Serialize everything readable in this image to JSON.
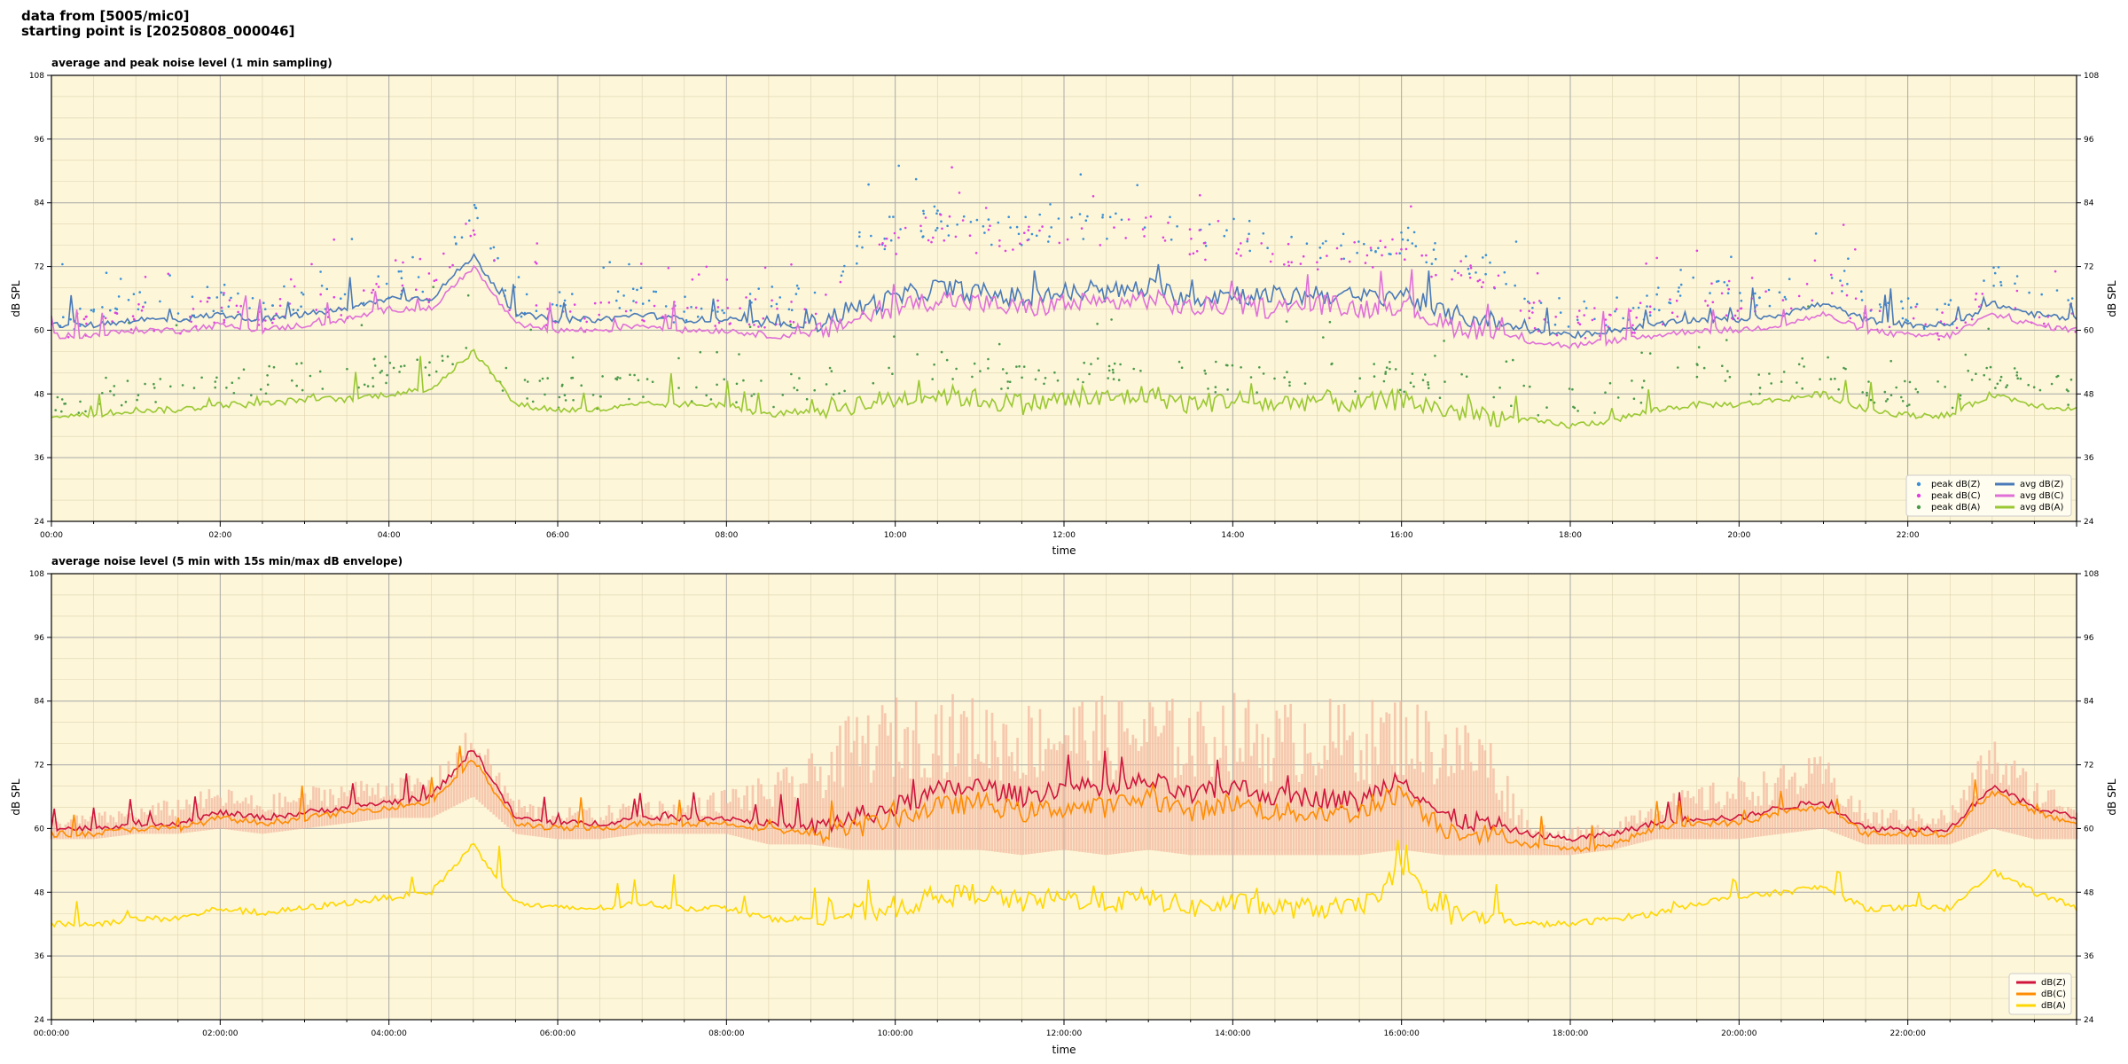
{
  "header": {
    "line1": "data from [5005/mic0]",
    "line2": "starting point is [20250808_000046]"
  },
  "colors": {
    "plot_bg": "#fdf6d8",
    "grid_major": "#aaaaaa",
    "grid_minor": "#ddd3b0",
    "peak_z": "#3a8fd6",
    "peak_c": "#e040e0",
    "peak_a": "#4a9a4a",
    "avg_z": "#4a7ab8",
    "avg_c": "#e070d8",
    "avg_a": "#9ac832",
    "line_z": "#d0143c",
    "line_c": "#ff8c00",
    "line_a": "#ffd700",
    "envelope": "#f3b8a0"
  },
  "chart_data": [
    {
      "type": "line",
      "title": "average and peak noise level (1 min sampling)",
      "xlabel": "time",
      "ylabel": "dB SPL",
      "ylim": [
        24,
        108
      ],
      "yticks": [
        24,
        36,
        48,
        60,
        72,
        84,
        96,
        108
      ],
      "xticks": [
        "00:00",
        "02:00",
        "04:00",
        "06:00",
        "08:00",
        "10:00",
        "12:00",
        "14:00",
        "16:00",
        "18:00",
        "20:00",
        "22:00"
      ],
      "x_hours": [
        0,
        0.5,
        1,
        1.5,
        2,
        2.5,
        3,
        3.5,
        4,
        4.5,
        5,
        5.5,
        6,
        6.5,
        7,
        7.5,
        8,
        8.5,
        9,
        9.5,
        10,
        10.5,
        11,
        11.5,
        12,
        12.5,
        13,
        13.5,
        14,
        14.5,
        15,
        15.5,
        16,
        16.5,
        17,
        17.5,
        18,
        18.5,
        19,
        19.5,
        20,
        20.5,
        21,
        21.5,
        22,
        22.5,
        23,
        23.5,
        24
      ],
      "grid": true,
      "legend": "bottom-right",
      "series": [
        {
          "name": "peak dB(Z)",
          "kind": "points",
          "values": [
            62,
            62,
            63,
            63,
            65,
            64,
            65,
            66,
            67,
            69,
            80,
            64,
            63,
            63,
            64,
            63,
            65,
            64,
            65,
            74,
            78,
            80,
            78,
            77,
            79,
            78,
            80,
            77,
            77,
            76,
            75,
            75,
            76,
            73,
            71,
            64,
            62,
            62,
            64,
            68,
            65,
            66,
            70,
            63,
            62,
            62,
            68,
            65,
            63
          ]
        },
        {
          "name": "peak dB(C)",
          "kind": "points",
          "values": [
            60,
            60,
            61,
            61,
            63,
            62,
            63,
            64,
            65,
            67,
            78,
            62,
            61,
            61,
            62,
            61,
            63,
            62,
            63,
            72,
            76,
            78,
            76,
            75,
            77,
            76,
            78,
            75,
            75,
            74,
            73,
            73,
            74,
            71,
            69,
            62,
            60,
            60,
            62,
            66,
            63,
            64,
            68,
            61,
            60,
            60,
            66,
            63,
            61
          ]
        },
        {
          "name": "peak dB(A)",
          "kind": "points",
          "values": [
            45,
            46,
            47,
            47,
            48,
            49,
            50,
            50,
            51,
            53,
            55,
            48,
            47,
            47,
            48,
            48,
            48,
            47,
            48,
            50,
            51,
            52,
            51,
            50,
            51,
            51,
            52,
            50,
            50,
            50,
            51,
            50,
            50,
            48,
            47,
            46,
            45,
            46,
            48,
            50,
            49,
            50,
            51,
            48,
            47,
            47,
            50,
            49,
            47
          ]
        },
        {
          "name": "avg dB(Z)",
          "kind": "line",
          "values": [
            61,
            61,
            62,
            62,
            63,
            62,
            63,
            64,
            66,
            66,
            74,
            63,
            62,
            62,
            63,
            62,
            62,
            61,
            61,
            64,
            66,
            68,
            67,
            66,
            67,
            67,
            68,
            66,
            67,
            66,
            67,
            66,
            67,
            63,
            62,
            60,
            59,
            60,
            61,
            62,
            62,
            63,
            65,
            62,
            61,
            61,
            65,
            63,
            62
          ]
        },
        {
          "name": "avg dB(C)",
          "kind": "line",
          "values": [
            59,
            59,
            60,
            60,
            61,
            60,
            61,
            62,
            64,
            64,
            72,
            61,
            60,
            60,
            61,
            60,
            60,
            59,
            59,
            62,
            64,
            66,
            65,
            64,
            65,
            65,
            66,
            64,
            65,
            64,
            65,
            64,
            65,
            61,
            60,
            58,
            57,
            58,
            59,
            60,
            60,
            61,
            63,
            60,
            59,
            59,
            63,
            61,
            60
          ]
        },
        {
          "name": "avg dB(A)",
          "kind": "line",
          "values": [
            44,
            44,
            45,
            45,
            46,
            46,
            47,
            47,
            48,
            49,
            56,
            46,
            45,
            45,
            46,
            46,
            46,
            44,
            45,
            46,
            47,
            48,
            47,
            46,
            47,
            47,
            48,
            46,
            47,
            46,
            47,
            46,
            47,
            45,
            44,
            43,
            42,
            43,
            45,
            46,
            46,
            47,
            48,
            45,
            44,
            44,
            48,
            46,
            45
          ]
        }
      ]
    },
    {
      "type": "line",
      "title": "average noise level (5 min with 15s min/max dB envelope)",
      "xlabel": "time",
      "ylabel": "dB SPL",
      "ylim": [
        24,
        108
      ],
      "yticks": [
        24,
        36,
        48,
        60,
        72,
        84,
        96,
        108
      ],
      "xticks": [
        "00:00:00",
        "02:00:00",
        "04:00:00",
        "06:00:00",
        "08:00:00",
        "10:00:00",
        "12:00:00",
        "14:00:00",
        "16:00:00",
        "18:00:00",
        "20:00:00",
        "22:00:00"
      ],
      "x_hours": [
        0,
        0.5,
        1,
        1.5,
        2,
        2.5,
        3,
        3.5,
        4,
        4.5,
        5,
        5.5,
        6,
        6.5,
        7,
        7.5,
        8,
        8.5,
        9,
        9.5,
        10,
        10.5,
        11,
        11.5,
        12,
        12.5,
        13,
        13.5,
        14,
        14.5,
        15,
        15.5,
        16,
        16.5,
        17,
        17.5,
        18,
        18.5,
        19,
        19.5,
        20,
        20.5,
        21,
        21.5,
        22,
        22.5,
        23,
        23.5,
        24
      ],
      "grid": true,
      "legend": "bottom-right",
      "series": [
        {
          "name": "dB(Z)",
          "kind": "line",
          "values": [
            60,
            60,
            61,
            61,
            63,
            62,
            63,
            64,
            65,
            66,
            75,
            62,
            61,
            61,
            62,
            62,
            62,
            61,
            60,
            62,
            64,
            67,
            68,
            66,
            68,
            67,
            69,
            66,
            68,
            66,
            66,
            65,
            70,
            62,
            61,
            59,
            58,
            59,
            61,
            62,
            62,
            64,
            65,
            60,
            60,
            60,
            68,
            64,
            62
          ]
        },
        {
          "name": "dB(C)",
          "kind": "line",
          "values": [
            59,
            59,
            60,
            60,
            62,
            61,
            62,
            63,
            64,
            65,
            73,
            61,
            60,
            60,
            61,
            61,
            61,
            60,
            59,
            60,
            62,
            64,
            65,
            63,
            64,
            64,
            66,
            63,
            65,
            63,
            63,
            63,
            67,
            60,
            59,
            57,
            56,
            57,
            60,
            61,
            61,
            63,
            64,
            59,
            59,
            59,
            67,
            63,
            61
          ]
        },
        {
          "name": "dB(A)",
          "kind": "line",
          "values": [
            42,
            42,
            43,
            43,
            45,
            44,
            45,
            46,
            47,
            48,
            57,
            46,
            45,
            45,
            46,
            45,
            45,
            43,
            43,
            44,
            45,
            47,
            48,
            46,
            47,
            46,
            47,
            45,
            46,
            45,
            45,
            45,
            52,
            44,
            43,
            42,
            42,
            43,
            44,
            46,
            47,
            48,
            49,
            45,
            45,
            45,
            52,
            48,
            45
          ]
        },
        {
          "name": "max envelope",
          "kind": "area_upper",
          "values": [
            62,
            63,
            64,
            66,
            68,
            66,
            68,
            69,
            70,
            70,
            80,
            66,
            64,
            64,
            66,
            65,
            68,
            70,
            74,
            82,
            85,
            86,
            85,
            84,
            86,
            85,
            86,
            84,
            86,
            84,
            85,
            84,
            86,
            82,
            80,
            62,
            60,
            62,
            66,
            68,
            70,
            72,
            74,
            64,
            64,
            64,
            78,
            70,
            66
          ]
        },
        {
          "name": "min envelope",
          "kind": "area_lower",
          "values": [
            58,
            58,
            59,
            59,
            60,
            59,
            60,
            61,
            62,
            62,
            66,
            59,
            58,
            58,
            59,
            59,
            59,
            57,
            57,
            56,
            56,
            56,
            56,
            55,
            56,
            55,
            56,
            55,
            55,
            55,
            55,
            55,
            56,
            55,
            55,
            55,
            55,
            56,
            58,
            58,
            58,
            59,
            60,
            57,
            57,
            57,
            60,
            58,
            58
          ]
        }
      ]
    }
  ]
}
